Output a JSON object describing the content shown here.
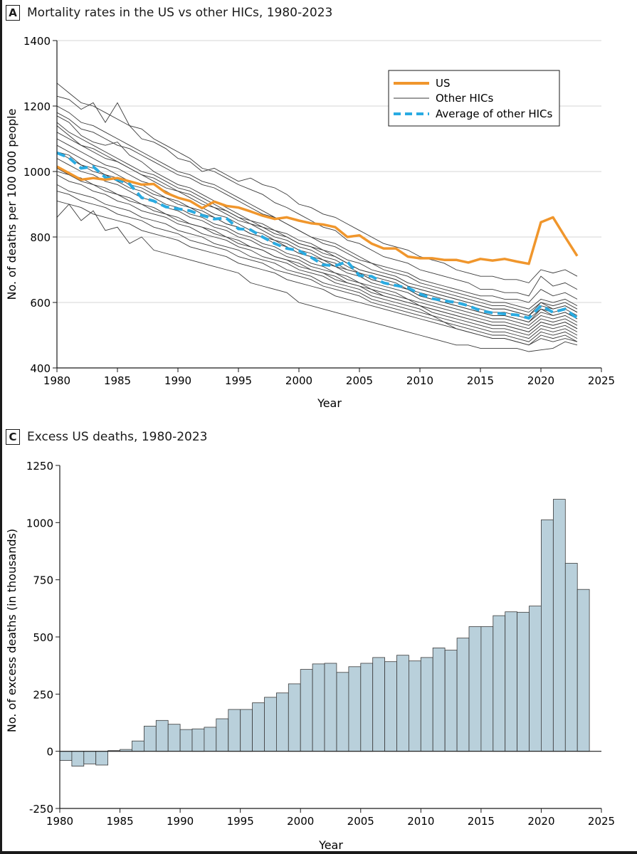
{
  "panel_a": {
    "letter": "A",
    "title": "Mortality rates in the US vs other HICs, 1980-2023"
  },
  "panel_c": {
    "letter": "C",
    "title": "Excess US deaths, 1980-2023"
  },
  "colors": {
    "us": "#F0962C",
    "other": "#3a3a3a",
    "average": "#29ABE2",
    "bar_fill": "#B9D0DB",
    "bar_stroke": "#3b3b3b",
    "axis": "#1a1a1a"
  },
  "chart_data": [
    {
      "type": "line",
      "title": "Mortality rates in the US vs other HICs, 1980-2023",
      "xlabel": "Year",
      "ylabel": "No. of deaths per 100 000 people",
      "xlim": [
        1980,
        2025
      ],
      "ylim": [
        400,
        1400
      ],
      "xticks": [
        1980,
        1985,
        1990,
        1995,
        2000,
        2005,
        2010,
        2015,
        2020,
        2025
      ],
      "yticks": [
        400,
        600,
        800,
        1000,
        1200,
        1400
      ],
      "ytick_labels": [
        "400",
        "600",
        "800",
        "1000",
        "1200",
        "1400"
      ],
      "legend": {
        "position": "top-right",
        "entries": [
          "US",
          "Other HICs",
          "Average of other HICs"
        ]
      },
      "x": [
        1980,
        1981,
        1982,
        1983,
        1984,
        1985,
        1986,
        1987,
        1988,
        1989,
        1990,
        1991,
        1992,
        1993,
        1994,
        1995,
        1996,
        1997,
        1998,
        1999,
        2000,
        2001,
        2002,
        2003,
        2004,
        2005,
        2006,
        2007,
        2008,
        2009,
        2010,
        2011,
        2012,
        2013,
        2014,
        2015,
        2016,
        2017,
        2018,
        2019,
        2020,
        2021,
        2022,
        2023
      ],
      "us": [
        1015,
        995,
        975,
        980,
        975,
        980,
        970,
        960,
        962,
        935,
        920,
        910,
        888,
        908,
        895,
        890,
        878,
        865,
        855,
        860,
        850,
        842,
        838,
        830,
        800,
        805,
        780,
        765,
        765,
        740,
        735,
        735,
        730,
        730,
        722,
        733,
        728,
        733,
        725,
        718,
        845,
        860,
        800,
        742
      ],
      "average": [
        1057,
        1042,
        1010,
        1015,
        982,
        975,
        962,
        920,
        910,
        892,
        886,
        880,
        866,
        855,
        858,
        825,
        822,
        800,
        780,
        765,
        758,
        738,
        715,
        712,
        725,
        682,
        680,
        660,
        652,
        645,
        626,
        612,
        605,
        600,
        590,
        575,
        568,
        565,
        562,
        552,
        590,
        570,
        580,
        552
      ],
      "other_hics": [
        [
          1270,
          1240,
          1210,
          1200,
          1180,
          1160,
          1140,
          1130,
          1100,
          1080,
          1060,
          1040,
          1010,
          1000,
          980,
          960,
          945,
          930,
          905,
          890,
          870,
          850,
          830,
          820,
          790,
          780,
          760,
          740,
          730,
          720,
          700,
          690,
          680,
          670,
          660,
          640,
          640,
          630,
          630,
          620,
          680,
          650,
          660,
          640
        ],
        [
          1230,
          1220,
          1190,
          1210,
          1150,
          1210,
          1140,
          1100,
          1090,
          1070,
          1040,
          1030,
          1000,
          1010,
          990,
          970,
          980,
          960,
          950,
          930,
          900,
          890,
          870,
          860,
          840,
          820,
          800,
          780,
          770,
          760,
          740,
          730,
          720,
          700,
          690,
          680,
          680,
          670,
          670,
          660,
          700,
          690,
          700,
          680
        ],
        [
          1200,
          1180,
          1150,
          1140,
          1120,
          1100,
          1080,
          1060,
          1040,
          1020,
          1000,
          990,
          970,
          960,
          940,
          920,
          900,
          880,
          860,
          840,
          820,
          800,
          780,
          770,
          750,
          730,
          720,
          700,
          690,
          680,
          660,
          650,
          640,
          630,
          620,
          610,
          600,
          600,
          590,
          580,
          610,
          600,
          610,
          590
        ],
        [
          1180,
          1160,
          1130,
          1120,
          1100,
          1080,
          1070,
          1050,
          1030,
          1010,
          990,
          980,
          960,
          950,
          930,
          910,
          890,
          870,
          860,
          840,
          820,
          800,
          790,
          780,
          760,
          740,
          720,
          710,
          700,
          690,
          670,
          660,
          650,
          640,
          630,
          620,
          620,
          610,
          610,
          600,
          640,
          620,
          630,
          610
        ],
        [
          1170,
          1150,
          1110,
          1090,
          1080,
          1090,
          1050,
          1030,
          1000,
          980,
          960,
          950,
          930,
          910,
          890,
          870,
          850,
          840,
          820,
          810,
          790,
          780,
          760,
          750,
          730,
          720,
          700,
          690,
          680,
          660,
          650,
          640,
          630,
          620,
          610,
          600,
          590,
          590,
          580,
          570,
          600,
          590,
          600,
          580
        ],
        [
          1150,
          1120,
          1100,
          1080,
          1060,
          1040,
          1020,
          1000,
          990,
          970,
          950,
          940,
          920,
          900,
          880,
          860,
          850,
          830,
          820,
          800,
          780,
          770,
          760,
          740,
          720,
          700,
          690,
          680,
          670,
          650,
          640,
          630,
          620,
          610,
          600,
          590,
          580,
          580,
          570,
          560,
          590,
          580,
          590,
          570
        ],
        [
          1120,
          1100,
          1080,
          1060,
          1040,
          1030,
          1010,
          990,
          970,
          950,
          940,
          920,
          900,
          890,
          870,
          850,
          840,
          820,
          800,
          790,
          770,
          760,
          740,
          730,
          710,
          690,
          680,
          670,
          660,
          640,
          630,
          620,
          610,
          600,
          590,
          580,
          570,
          570,
          560,
          550,
          580,
          570,
          580,
          560
        ],
        [
          1100,
          1080,
          1060,
          1040,
          1020,
          1010,
          990,
          970,
          960,
          940,
          920,
          910,
          890,
          870,
          860,
          840,
          820,
          810,
          790,
          780,
          760,
          750,
          730,
          720,
          700,
          690,
          670,
          660,
          650,
          640,
          620,
          610,
          600,
          590,
          580,
          570,
          560,
          560,
          550,
          540,
          570,
          560,
          570,
          550
        ],
        [
          1080,
          1060,
          1040,
          1020,
          1010,
          990,
          970,
          960,
          940,
          920,
          910,
          890,
          880,
          860,
          840,
          830,
          810,
          800,
          780,
          770,
          750,
          740,
          720,
          710,
          690,
          680,
          660,
          650,
          640,
          630,
          610,
          600,
          590,
          580,
          570,
          560,
          550,
          550,
          540,
          530,
          560,
          550,
          560,
          540
        ],
        [
          1060,
          1040,
          1020,
          1000,
          990,
          970,
          950,
          940,
          920,
          900,
          890,
          870,
          860,
          840,
          830,
          810,
          800,
          780,
          770,
          750,
          740,
          720,
          710,
          690,
          680,
          660,
          650,
          640,
          630,
          610,
          600,
          590,
          580,
          570,
          560,
          550,
          540,
          540,
          530,
          520,
          550,
          540,
          550,
          530
        ],
        [
          1040,
          1020,
          1000,
          990,
          970,
          960,
          940,
          920,
          910,
          890,
          880,
          860,
          850,
          830,
          820,
          800,
          790,
          770,
          760,
          740,
          730,
          710,
          700,
          690,
          670,
          660,
          640,
          630,
          620,
          610,
          590,
          580,
          570,
          560,
          550,
          540,
          530,
          530,
          520,
          510,
          540,
          530,
          540,
          520
        ],
        [
          1010,
          990,
          980,
          960,
          950,
          930,
          920,
          900,
          890,
          870,
          860,
          840,
          830,
          820,
          800,
          790,
          770,
          760,
          740,
          730,
          720,
          700,
          690,
          670,
          660,
          650,
          630,
          620,
          610,
          600,
          590,
          570,
          560,
          550,
          540,
          530,
          520,
          520,
          510,
          500,
          530,
          520,
          530,
          510
        ],
        [
          990,
          970,
          960,
          940,
          930,
          910,
          900,
          880,
          870,
          860,
          840,
          830,
          810,
          800,
          790,
          770,
          760,
          740,
          730,
          720,
          700,
          690,
          680,
          660,
          650,
          640,
          620,
          610,
          600,
          590,
          580,
          560,
          550,
          540,
          530,
          520,
          510,
          510,
          500,
          490,
          520,
          510,
          520,
          500
        ],
        [
          960,
          940,
          930,
          920,
          900,
          890,
          880,
          860,
          850,
          840,
          820,
          810,
          800,
          780,
          770,
          760,
          740,
          730,
          720,
          700,
          690,
          680,
          660,
          650,
          640,
          630,
          610,
          600,
          590,
          580,
          570,
          560,
          540,
          530,
          520,
          510,
          500,
          500,
          490,
          480,
          510,
          500,
          510,
          490
        ],
        [
          940,
          930,
          910,
          900,
          890,
          870,
          860,
          850,
          830,
          820,
          810,
          790,
          780,
          770,
          760,
          740,
          730,
          720,
          700,
          690,
          680,
          670,
          650,
          640,
          630,
          620,
          600,
          590,
          580,
          570,
          560,
          550,
          540,
          520,
          510,
          500,
          490,
          490,
          480,
          470,
          500,
          490,
          500,
          480
        ],
        [
          910,
          900,
          890,
          870,
          860,
          850,
          840,
          820,
          810,
          800,
          790,
          770,
          760,
          750,
          740,
          720,
          710,
          700,
          690,
          670,
          660,
          650,
          640,
          620,
          610,
          600,
          590,
          580,
          570,
          560,
          550,
          540,
          530,
          520,
          510,
          500,
          490,
          490,
          480,
          470,
          490,
          480,
          490,
          480
        ],
        [
          860,
          900,
          850,
          880,
          820,
          830,
          780,
          800,
          760,
          750,
          740,
          730,
          720,
          710,
          700,
          690,
          660,
          650,
          640,
          630,
          600,
          590,
          580,
          570,
          560,
          550,
          540,
          530,
          520,
          510,
          500,
          490,
          480,
          470,
          470,
          460,
          460,
          460,
          460,
          450,
          455,
          460,
          480,
          470
        ],
        [
          1060,
          1050,
          1020,
          1010,
          990,
          980,
          960,
          950,
          930,
          920,
          900,
          890,
          870,
          860,
          840,
          830,
          810,
          800,
          790,
          770,
          750,
          740,
          730,
          710,
          700,
          690,
          670,
          660,
          650,
          640,
          620,
          610,
          600,
          590,
          580,
          570,
          560,
          560,
          550,
          540,
          580,
          560,
          570,
          550
        ],
        [
          1000,
          990,
          970,
          960,
          940,
          930,
          910,
          900,
          880,
          870,
          850,
          840,
          830,
          810,
          800,
          780,
          770,
          760,
          740,
          730,
          710,
          700,
          690,
          680,
          660,
          650,
          640,
          620,
          610,
          600,
          590,
          580,
          570,
          560,
          550,
          540,
          530,
          530,
          520,
          510,
          540,
          530,
          540,
          520
        ],
        [
          1140,
          1110,
          1080,
          1070,
          1050,
          1030,
          1010,
          990,
          980,
          960,
          940,
          930,
          910,
          890,
          880,
          860,
          840,
          830,
          810,
          800,
          780,
          770,
          750,
          740,
          720,
          700,
          690,
          680,
          670,
          650,
          640,
          630,
          620,
          610,
          600,
          590,
          580,
          580,
          570,
          560,
          600,
          580,
          590,
          570
        ]
      ]
    },
    {
      "type": "bar",
      "title": "Excess US deaths, 1980-2023",
      "xlabel": "Year",
      "ylabel": "No. of excess deaths (in thousands)",
      "xlim": [
        1980,
        2025
      ],
      "ylim": [
        -250,
        1250
      ],
      "xticks": [
        1980,
        1985,
        1990,
        1995,
        2000,
        2005,
        2010,
        2015,
        2020,
        2025
      ],
      "yticks": [
        -250,
        0,
        250,
        500,
        750,
        1000,
        1250
      ],
      "ytick_labels": [
        "-250",
        "0",
        "250",
        "500",
        "750",
        "1000",
        "1250"
      ],
      "categories": [
        1980,
        1981,
        1982,
        1983,
        1984,
        1985,
        1986,
        1987,
        1988,
        1989,
        1990,
        1991,
        1992,
        1993,
        1994,
        1995,
        1996,
        1997,
        1998,
        1999,
        2000,
        2001,
        2002,
        2003,
        2004,
        2005,
        2006,
        2007,
        2008,
        2009,
        2010,
        2011,
        2012,
        2013,
        2014,
        2015,
        2016,
        2017,
        2018,
        2019,
        2020,
        2021,
        2022,
        2023
      ],
      "values": [
        -40,
        -65,
        -55,
        -60,
        3,
        8,
        45,
        110,
        135,
        118,
        95,
        98,
        105,
        142,
        183,
        183,
        212,
        236,
        255,
        295,
        358,
        382,
        385,
        345,
        370,
        385,
        410,
        392,
        420,
        395,
        410,
        452,
        442,
        495,
        545,
        545,
        593,
        610,
        608,
        635,
        1012,
        1102,
        822,
        708
      ]
    }
  ]
}
